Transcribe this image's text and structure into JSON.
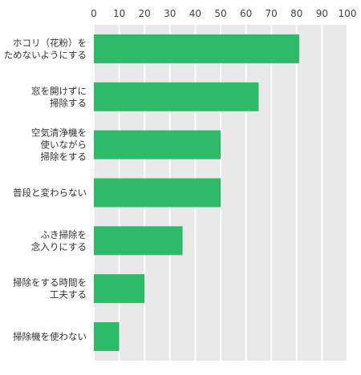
{
  "chart_data": {
    "type": "bar",
    "orientation": "horizontal",
    "xlim": [
      0,
      100
    ],
    "x_ticks": [
      "0",
      "10",
      "20",
      "30",
      "40",
      "50",
      "60",
      "70",
      "80",
      "90",
      "100"
    ],
    "grid": true,
    "bar_color": "#2dbb6a",
    "panel_color": "#e9e9e9",
    "categories": [
      [
        "ホコリ（花粉）を",
        "ためないようにする"
      ],
      [
        "窓を開けずに",
        "掃除する"
      ],
      [
        "空気清浄機を",
        "使いながら",
        "掃除をする"
      ],
      [
        "普段と変わらない"
      ],
      [
        "ふき掃除を",
        "念入りにする"
      ],
      [
        "掃除をする時間を",
        "工夫する"
      ],
      [
        "掃除機を使わない"
      ]
    ],
    "values": [
      81,
      65,
      50,
      50,
      35,
      20,
      10
    ]
  }
}
